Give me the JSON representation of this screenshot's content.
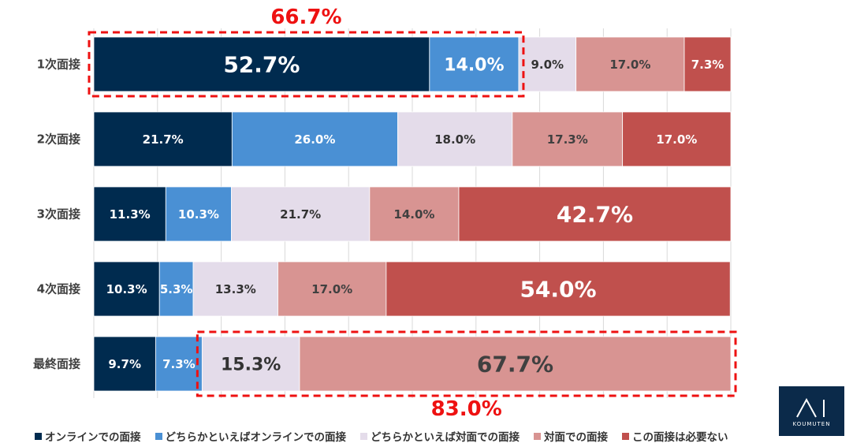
{
  "chart_data": {
    "type": "bar",
    "orientation": "horizontal-stacked-100",
    "categories": [
      "1次面接",
      "2次面接",
      "3次面接",
      "4次面接",
      "最終面接"
    ],
    "series": [
      {
        "name": "オンラインでの面接",
        "color": "#002b4f",
        "values": [
          52.7,
          21.7,
          11.3,
          10.3,
          9.7
        ],
        "labels": [
          "52.7%",
          "21.7%",
          "11.3%",
          "10.3%",
          "9.7%"
        ]
      },
      {
        "name": "どちらかといえばオンラインでの面接",
        "color": "#4a90d4",
        "values": [
          14.0,
          26.0,
          10.3,
          5.3,
          7.3
        ],
        "labels": [
          "14.0%",
          "26.0%",
          "10.3%",
          "5.3%",
          "7.3%"
        ]
      },
      {
        "name": "どちらかといえば対面での面接",
        "color": "#e4dcea",
        "values": [
          9.0,
          18.0,
          21.7,
          13.3,
          15.3
        ],
        "labels": [
          "9.0%",
          "18.0%",
          "21.7%",
          "13.3%",
          "15.3%"
        ]
      },
      {
        "name": "対面での面接",
        "color": "#d89492",
        "values": [
          17.0,
          17.3,
          14.0,
          17.0,
          67.7
        ],
        "labels": [
          "17.0%",
          "17.3%",
          "14.0%",
          "17.0%",
          "67.7%"
        ]
      },
      {
        "name": "この面接は必要ない",
        "color": "#c0504d",
        "values": [
          7.3,
          17.0,
          42.7,
          54.0,
          0.0
        ],
        "labels": [
          "7.3%",
          "17.0%",
          "42.7%",
          "54.0%",
          ""
        ]
      }
    ],
    "xlim": [
      0,
      100
    ],
    "grid": true,
    "legend": "bottom",
    "annotations": [
      {
        "text": "66.7%",
        "category": "1次面接",
        "series_from": 0,
        "series_to": 1,
        "position": "above"
      },
      {
        "text": "83.0%",
        "category": "最終面接",
        "series_from": 2,
        "series_to": 3,
        "position": "below"
      }
    ]
  },
  "logo": {
    "caption": "KOUMUTEN"
  }
}
